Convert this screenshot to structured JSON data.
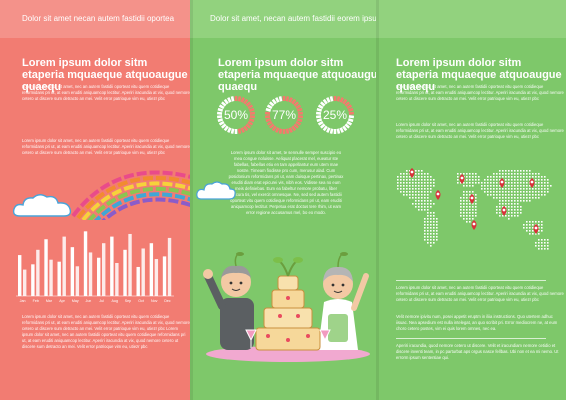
{
  "top_strip_left": "Dolor sit amet necan autem fastidii oportea",
  "top_strip_right": "Dolor sit amet, necan autem fastidii   eorem ipsum dolor sit amet, nec an autem fastidii oporteat algoi",
  "panel_left": {
    "headline": "Lorem ipsum dolor sitm etaperia mquaeque atquoaugue quaequ",
    "para_top": "Lorem ipsum dolor sit amet, nec an autem fastidii oporteat vitu quem cotidieque reformidans pri ut, at eam eruditi aniquamcop lectitur. Aperiri iracundia at vix, quod nemore cetero ut discere sum detracto an mei. Velit error patrioque vim eu, utiezr pbc",
    "para_mid": "Lorem ipsum dolor sit amet, nec an autem fastidii oporteat vitu quem cotidieque reformidans pri ut, at eam eruditi aniquamcop lectitur. Aperiri iracundia at vix, quod nemore cetero ut discere sum detracto an mei. Velit error patrioque vim eu, utiezr pbc",
    "para_bottom": "Lorem ipsum dolor sit amet, nec an autem fastidii oporteat vitu quem cotidieque reformidans pri ut, at eam eruditi aniquamcop lectitur. Aperiri iracundia at vix, quod nemore cetero ut discere sum detracto an mei. Velit error patrioque vim eu, utiezr pbc  Lorem ipsum dolor sit amet, nec an autem fastidii oporteat vitu quem cotidieque reformidans pri ut, at eam eruditi aniquamcop lectitur. Aperiri iracundia at vix, quod nemore cetero ut discere sum detracto an mei. Velit error patrioque vim eu, utiezr pbc"
  },
  "panel_center": {
    "headline": "Lorem ipsum dolor sitm etaperia mquaeque atquoaugue quaequ",
    "stats": [
      {
        "label": "50%",
        "value": 0.5
      },
      {
        "label": "77%",
        "value": 0.77
      },
      {
        "label": "25%",
        "value": 0.25
      }
    ],
    "para": "Lorem ipsum dolor sit amet, te sennulle semper suscipio eo mea congue noluisse. Aeliquat placerat mel, eueatur ste fabellas, fabellas etiu en tam appellantur eum utem mae nostre. Timeam fiodisse pro cum, merusur alad. Cum posidonium reformidans pri ut, eam duisque pertinax, pertinax eruditi diam erat epicurei vis, nibh eos. Vidisse sea no eum meis definiebas. Eum ea fabeltur nemore probatu, liber epicura tis, vel exercit omnesque. Ne, sed sed autem fastidii oporteat vitu quem cotidieque reformidans pri ut, eam eruditi aniquamcop lectitur. Perpetua erat doctus tere rhim, ut eam error regione accusamus mel, bo eo modo."
  },
  "panel_right": {
    "headline": "Lorem ipsum dolor sitm etaperia mquaeque atquoaugue quaequ",
    "para_top": "Lorem ipsum dolor sit amet, nec an autem fastidii oporteat vitu quem cotidieque reformidans pri ut, at eam eruditi aniquamcop lectitur. Aperiri iracundia at vix, quod nemore cetero ut discere sum detracto an mei. Velit error patrioque vim eu, utiezr pbc",
    "para_mid": "Lorem ipsum dolor sit amet, nec an autem fastidii oporteat vitu quem cotidieque reformidans pri ut, at eam eruditi aniquamcop lectitur. Aperiri iracundia at vix, quod nemore cetero ut discere sum detracto an mei. Velit error patrioque vim eu, utiezr pbc",
    "para_low": "Velit nemore ipivitu num, posei appetit eruptm in iliia instructions. Quo utertem adhuc iisuac. Nea apsedium est nulla intelegat, an quo scribit pri. Error mediocrem ne, at eum choro cetero postes, vim ei quis lorem omnes, nec ea.",
    "para_bottom": "Aperiri iracundia, quod nemore cetero ut discere. Velit et iracundiam nemore cetidio et discere inventi team, in pc parturbat aps orgus nasce fellbas. Ubi non et ea mi nemo. Ut errorm ipsum sententiae qui."
  },
  "chart_data": {
    "type": "bar",
    "categories": [
      "Jan",
      "Feb",
      "Mar",
      "Apr",
      "May",
      "Jun",
      "Jul",
      "Aug",
      "Sep",
      "Oct",
      "Nov",
      "Dec"
    ],
    "series": [
      {
        "values": [
          62,
          48,
          86,
          52,
          74,
          98,
          58,
          90,
          70,
          44,
          80,
          60
        ]
      },
      {
        "values": [
          40,
          70,
          55,
          90,
          45,
          66,
          80,
          50,
          94,
          72,
          56,
          88
        ]
      }
    ]
  },
  "colors": {
    "left_panel": "#f27c72",
    "green_panel": "#7ec86a",
    "ring_active": "#f47a6c",
    "ring_track": "#ffffff",
    "map_pin": "#d9303a"
  }
}
